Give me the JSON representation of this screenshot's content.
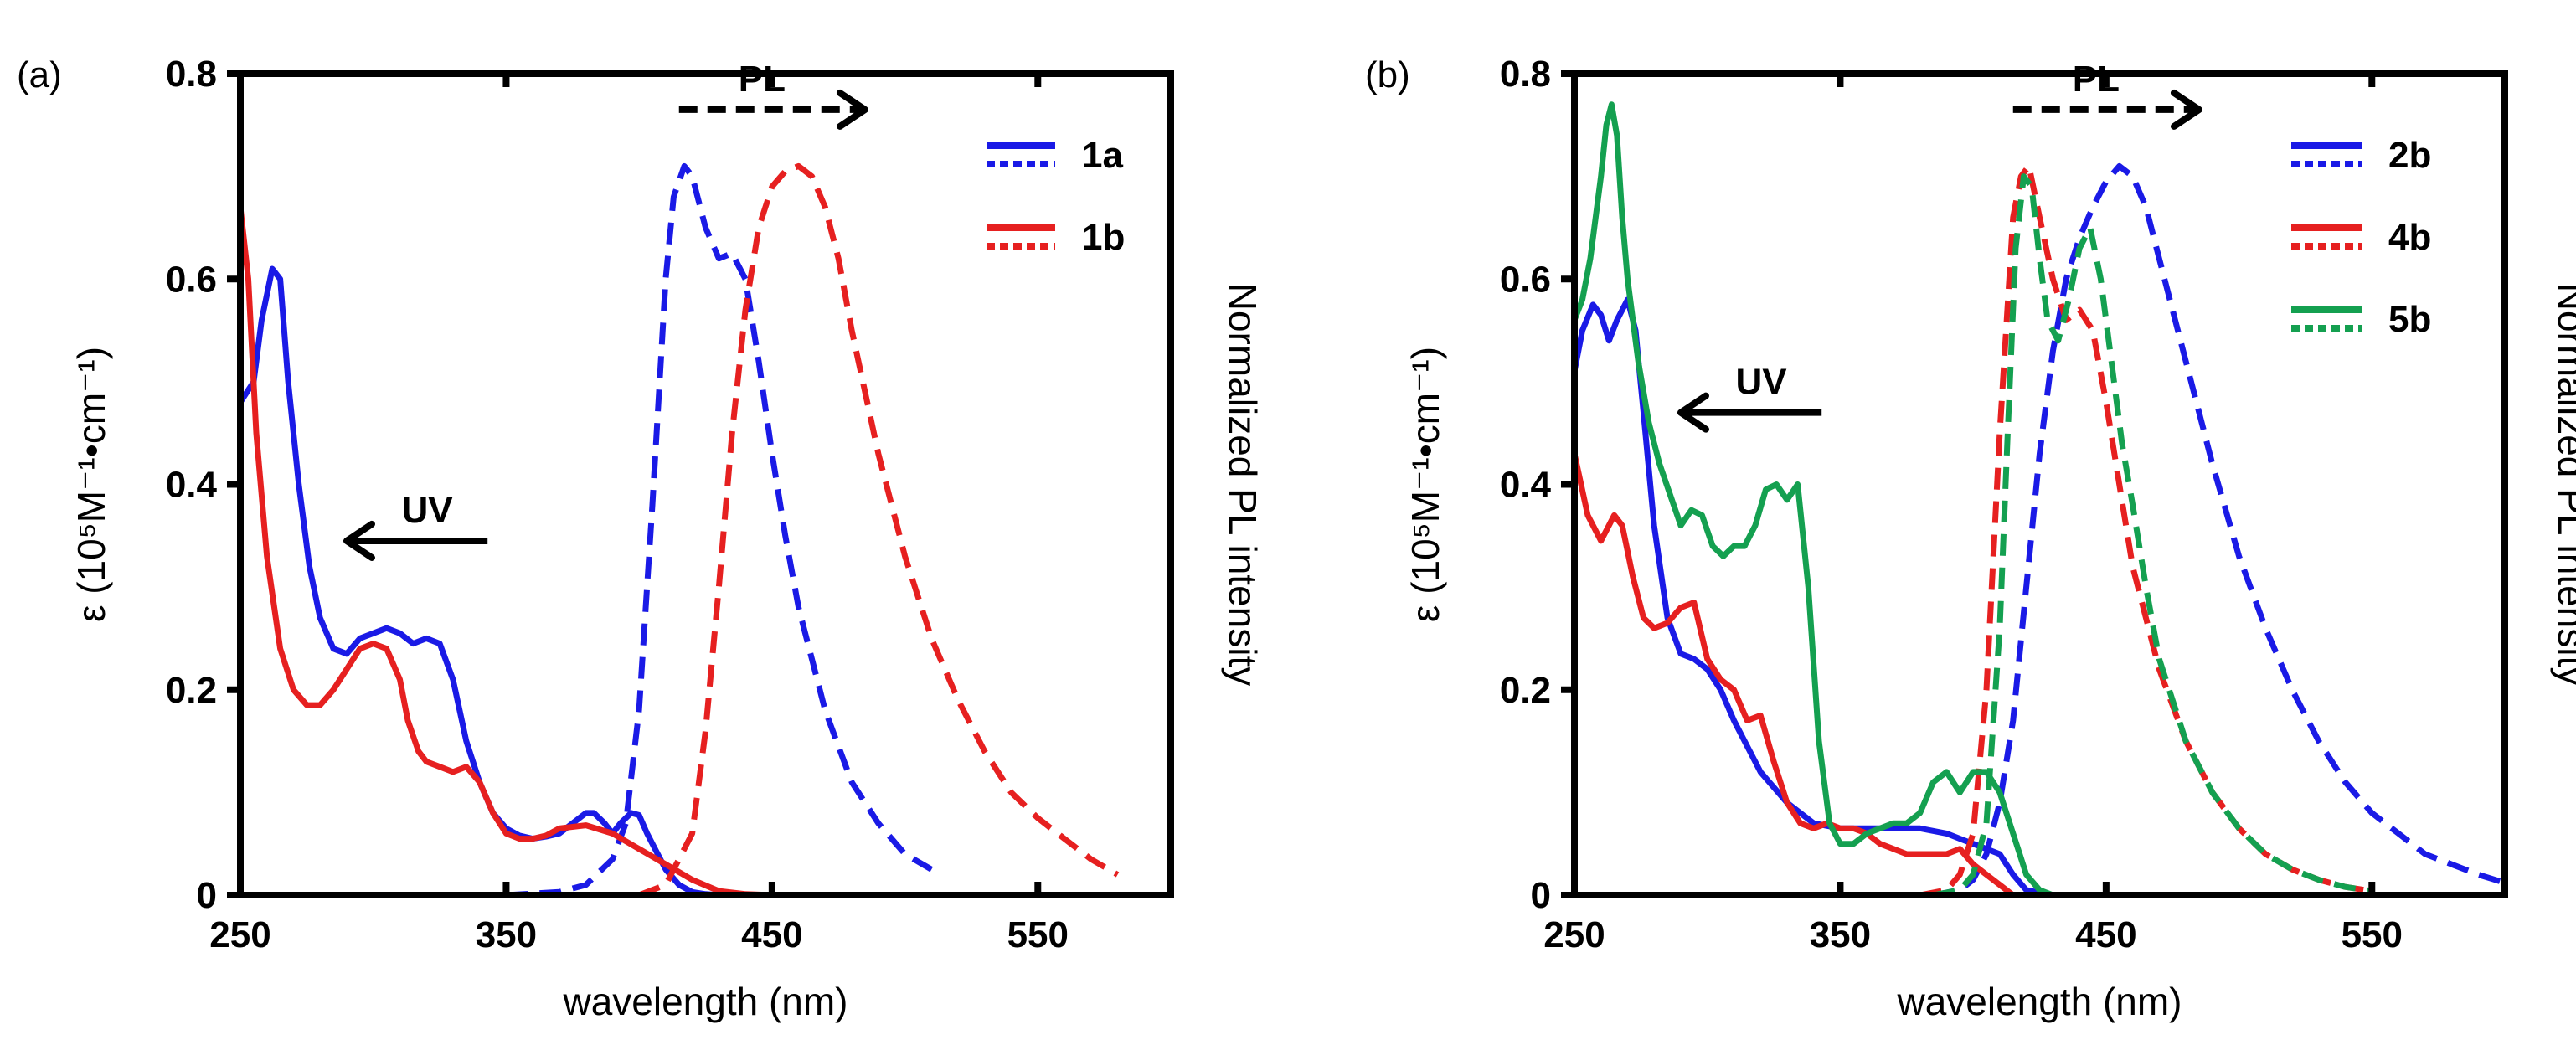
{
  "chart_data": [
    {
      "type": "line",
      "panel_label": "(a)",
      "xlabel": "wavelength (nm)",
      "ylabel_left": "ε (10⁵M⁻¹•cm⁻¹)",
      "ylabel_right": "Normalized PL intensity",
      "xlim": [
        250,
        600
      ],
      "ylim": [
        0,
        0.8
      ],
      "xticks": [
        250,
        350,
        450,
        550
      ],
      "xtick_labels": [
        "250",
        "350",
        "450",
        "550"
      ],
      "yticks": [
        0,
        0.2,
        0.4,
        0.6,
        0.8
      ],
      "ytick_labels": [
        "0",
        "0.2",
        "0.4",
        "0.6",
        "0.8"
      ],
      "annotations": [
        {
          "label": "UV",
          "direction": "left",
          "x_from": 343,
          "x_to": 290,
          "y": 0.345
        },
        {
          "label": "PL",
          "direction": "right",
          "x_from": 415,
          "x_to": 485,
          "y": 0.765
        }
      ],
      "legend": [
        {
          "label": "1a",
          "color": "#1a1ae6"
        },
        {
          "label": "1b",
          "color": "#e62020"
        }
      ],
      "series": [
        {
          "name": "1a UV",
          "legend": "1a",
          "kind": "absorption",
          "color": "#1a1ae6",
          "x": [
            250,
            255,
            258,
            262,
            265,
            268,
            272,
            276,
            280,
            285,
            290,
            295,
            300,
            305,
            310,
            315,
            320,
            325,
            330,
            335,
            340,
            345,
            350,
            355,
            360,
            365,
            370,
            375,
            380,
            383,
            387,
            390,
            393,
            397,
            400,
            403,
            407,
            410,
            415,
            420,
            425,
            430,
            440,
            450
          ],
          "y": [
            0.48,
            0.5,
            0.56,
            0.61,
            0.6,
            0.5,
            0.4,
            0.32,
            0.27,
            0.24,
            0.235,
            0.25,
            0.255,
            0.26,
            0.255,
            0.245,
            0.25,
            0.245,
            0.21,
            0.15,
            0.11,
            0.08,
            0.065,
            0.058,
            0.055,
            0.057,
            0.06,
            0.07,
            0.08,
            0.08,
            0.07,
            0.06,
            0.07,
            0.08,
            0.078,
            0.06,
            0.04,
            0.025,
            0.01,
            0.003,
            0.001,
            0,
            0,
            0
          ]
        },
        {
          "name": "1a PL",
          "legend": "1a",
          "kind": "emission",
          "color": "#1a1ae6",
          "x": [
            350,
            370,
            380,
            390,
            395,
            400,
            405,
            410,
            413,
            417,
            420,
            425,
            430,
            435,
            440,
            445,
            450,
            455,
            460,
            470,
            480,
            490,
            500,
            510
          ],
          "y": [
            0,
            0.003,
            0.01,
            0.035,
            0.07,
            0.18,
            0.38,
            0.6,
            0.68,
            0.71,
            0.7,
            0.65,
            0.62,
            0.625,
            0.6,
            0.52,
            0.43,
            0.35,
            0.28,
            0.18,
            0.11,
            0.07,
            0.04,
            0.025
          ]
        },
        {
          "name": "1b UV",
          "legend": "1b",
          "kind": "absorption",
          "color": "#e62020",
          "x": [
            250,
            253,
            256,
            260,
            265,
            270,
            275,
            280,
            285,
            290,
            295,
            300,
            305,
            310,
            313,
            317,
            320,
            325,
            330,
            335,
            340,
            345,
            350,
            355,
            360,
            365,
            370,
            380,
            390,
            400,
            410,
            420,
            430,
            440,
            450
          ],
          "y": [
            0.67,
            0.6,
            0.45,
            0.33,
            0.24,
            0.2,
            0.185,
            0.185,
            0.2,
            0.22,
            0.24,
            0.245,
            0.24,
            0.21,
            0.17,
            0.14,
            0.13,
            0.125,
            0.12,
            0.125,
            0.11,
            0.08,
            0.06,
            0.055,
            0.055,
            0.058,
            0.065,
            0.068,
            0.06,
            0.045,
            0.03,
            0.015,
            0.004,
            0.001,
            0
          ]
        },
        {
          "name": "1b PL",
          "legend": "1b",
          "kind": "emission",
          "color": "#e62020",
          "x": [
            400,
            410,
            420,
            425,
            430,
            435,
            440,
            445,
            450,
            455,
            460,
            465,
            470,
            475,
            480,
            490,
            500,
            510,
            520,
            530,
            540,
            550,
            560,
            570,
            580
          ],
          "y": [
            0,
            0.01,
            0.06,
            0.16,
            0.3,
            0.45,
            0.57,
            0.65,
            0.69,
            0.705,
            0.71,
            0.7,
            0.67,
            0.62,
            0.55,
            0.43,
            0.33,
            0.25,
            0.19,
            0.14,
            0.1,
            0.075,
            0.055,
            0.035,
            0.02
          ]
        }
      ]
    },
    {
      "type": "line",
      "panel_label": "(b)",
      "xlabel": "wavelength (nm)",
      "ylabel_left": "ε (10⁵M⁻¹•cm⁻¹)",
      "ylabel_right": "Normalized PL intensity",
      "xlim": [
        250,
        600
      ],
      "ylim": [
        0,
        0.8
      ],
      "xticks": [
        250,
        350,
        450,
        550
      ],
      "xtick_labels": [
        "250",
        "350",
        "450",
        "550"
      ],
      "yticks": [
        0,
        0.2,
        0.4,
        0.6,
        0.8
      ],
      "ytick_labels": [
        "0",
        "0.2",
        "0.4",
        "0.6",
        "0.8"
      ],
      "annotations": [
        {
          "label": "UV",
          "direction": "left",
          "x_from": 343,
          "x_to": 290,
          "y": 0.47
        },
        {
          "label": "PL",
          "direction": "right",
          "x_from": 415,
          "x_to": 485,
          "y": 0.765
        }
      ],
      "legend": [
        {
          "label": "2b",
          "color": "#1a1ae6"
        },
        {
          "label": "4b",
          "color": "#e62020"
        },
        {
          "label": "5b",
          "color": "#14a050"
        }
      ],
      "series": [
        {
          "name": "2b UV",
          "legend": "2b",
          "kind": "absorption",
          "color": "#1a1ae6",
          "x": [
            250,
            253,
            257,
            260,
            263,
            266,
            270,
            273,
            276,
            280,
            285,
            290,
            295,
            300,
            305,
            310,
            320,
            330,
            340,
            350,
            360,
            370,
            380,
            390,
            395,
            400,
            405,
            410,
            415,
            420,
            430
          ],
          "y": [
            0.51,
            0.55,
            0.575,
            0.565,
            0.54,
            0.56,
            0.58,
            0.55,
            0.47,
            0.36,
            0.27,
            0.235,
            0.23,
            0.22,
            0.2,
            0.17,
            0.12,
            0.09,
            0.07,
            0.065,
            0.065,
            0.065,
            0.065,
            0.06,
            0.055,
            0.05,
            0.045,
            0.04,
            0.02,
            0.005,
            0
          ]
        },
        {
          "name": "2b PL",
          "legend": "2b",
          "kind": "emission",
          "color": "#1a1ae6",
          "x": [
            385,
            395,
            400,
            405,
            410,
            415,
            420,
            425,
            430,
            435,
            440,
            445,
            450,
            455,
            460,
            465,
            470,
            480,
            490,
            500,
            510,
            520,
            530,
            540,
            550,
            560,
            570,
            580,
            590,
            600
          ],
          "y": [
            0,
            0.005,
            0.015,
            0.04,
            0.09,
            0.17,
            0.3,
            0.43,
            0.53,
            0.6,
            0.64,
            0.67,
            0.695,
            0.71,
            0.7,
            0.67,
            0.62,
            0.52,
            0.42,
            0.33,
            0.26,
            0.2,
            0.15,
            0.11,
            0.08,
            0.06,
            0.04,
            0.03,
            0.02,
            0.012
          ]
        },
        {
          "name": "4b UV",
          "legend": "4b",
          "kind": "absorption",
          "color": "#e62020",
          "x": [
            250,
            255,
            260,
            265,
            268,
            272,
            276,
            280,
            285,
            290,
            295,
            300,
            305,
            310,
            315,
            320,
            325,
            330,
            335,
            340,
            345,
            350,
            355,
            360,
            365,
            370,
            375,
            380,
            385,
            390,
            395,
            400,
            405,
            410,
            415
          ],
          "y": [
            0.43,
            0.37,
            0.345,
            0.37,
            0.36,
            0.31,
            0.27,
            0.26,
            0.265,
            0.28,
            0.285,
            0.23,
            0.21,
            0.2,
            0.17,
            0.175,
            0.13,
            0.09,
            0.07,
            0.065,
            0.07,
            0.065,
            0.065,
            0.06,
            0.05,
            0.045,
            0.04,
            0.04,
            0.04,
            0.04,
            0.045,
            0.03,
            0.02,
            0.01,
            0
          ]
        },
        {
          "name": "4b PL",
          "legend": "4b",
          "kind": "emission",
          "color": "#e62020",
          "x": [
            380,
            390,
            395,
            400,
            405,
            410,
            415,
            418,
            421,
            425,
            430,
            435,
            440,
            445,
            450,
            455,
            460,
            470,
            480,
            490,
            500,
            510,
            520,
            530,
            540,
            550
          ],
          "y": [
            0,
            0.005,
            0.02,
            0.06,
            0.2,
            0.45,
            0.66,
            0.7,
            0.71,
            0.66,
            0.6,
            0.56,
            0.57,
            0.55,
            0.48,
            0.4,
            0.32,
            0.22,
            0.15,
            0.1,
            0.065,
            0.04,
            0.025,
            0.015,
            0.008,
            0.004
          ]
        },
        {
          "name": "5b UV",
          "legend": "5b",
          "kind": "absorption",
          "color": "#14a050",
          "x": [
            250,
            253,
            256,
            260,
            262,
            264,
            266,
            268,
            270,
            274,
            278,
            282,
            286,
            290,
            294,
            298,
            302,
            306,
            310,
            314,
            318,
            322,
            326,
            330,
            334,
            338,
            342,
            346,
            350,
            355,
            360,
            365,
            370,
            375,
            380,
            385,
            390,
            395,
            400,
            405,
            410,
            415,
            420,
            425,
            430
          ],
          "y": [
            0.56,
            0.58,
            0.62,
            0.7,
            0.75,
            0.77,
            0.74,
            0.66,
            0.6,
            0.52,
            0.46,
            0.42,
            0.39,
            0.36,
            0.375,
            0.37,
            0.34,
            0.33,
            0.34,
            0.34,
            0.36,
            0.395,
            0.4,
            0.385,
            0.4,
            0.3,
            0.15,
            0.07,
            0.05,
            0.05,
            0.06,
            0.065,
            0.07,
            0.07,
            0.08,
            0.11,
            0.12,
            0.1,
            0.12,
            0.12,
            0.1,
            0.06,
            0.02,
            0.005,
            0
          ]
        },
        {
          "name": "5b PL",
          "legend": "5b",
          "kind": "emission",
          "color": "#14a050",
          "x": [
            385,
            395,
            400,
            405,
            410,
            413,
            416,
            419,
            422,
            425,
            428,
            432,
            436,
            440,
            444,
            448,
            452,
            456,
            460,
            465,
            470,
            480,
            490,
            500,
            510,
            520,
            530,
            540,
            550
          ],
          "y": [
            0,
            0.005,
            0.02,
            0.07,
            0.26,
            0.45,
            0.63,
            0.7,
            0.69,
            0.62,
            0.56,
            0.54,
            0.58,
            0.63,
            0.65,
            0.6,
            0.52,
            0.44,
            0.38,
            0.3,
            0.23,
            0.15,
            0.1,
            0.065,
            0.04,
            0.025,
            0.015,
            0.008,
            0.004
          ]
        }
      ]
    }
  ]
}
